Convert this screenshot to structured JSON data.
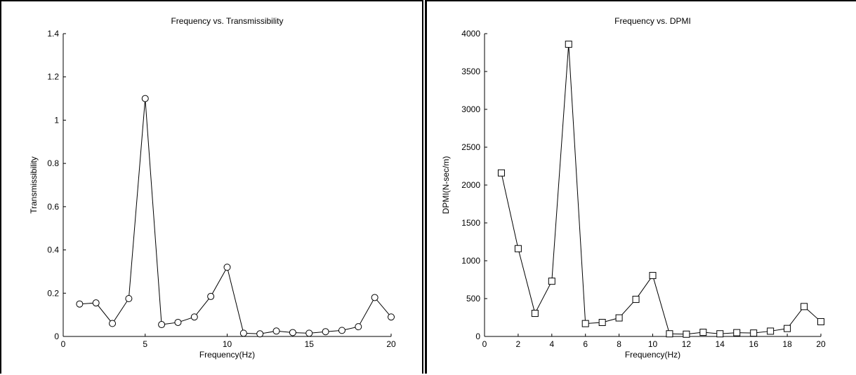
{
  "chart_data": [
    {
      "type": "line",
      "title": "Frequency vs. Transmissibility",
      "xlabel": "Frequency(Hz)",
      "ylabel": "Transmissibility",
      "xlim": [
        0,
        20
      ],
      "ylim": [
        0,
        1.4
      ],
      "xticks": [
        "0",
        "5",
        "10",
        "15",
        "20"
      ],
      "yticks": [
        "0",
        "0.2",
        "0.4",
        "0.6",
        "0.8",
        "1",
        "1.2",
        "1.4"
      ],
      "marker": "circle",
      "grid": false,
      "color": "#000000",
      "x": [
        1,
        2,
        3,
        4,
        5,
        6,
        7,
        8,
        9,
        10,
        11,
        12,
        13,
        14,
        15,
        16,
        17,
        18,
        19,
        20
      ],
      "y": [
        0.15,
        0.155,
        0.06,
        0.175,
        1.1,
        0.055,
        0.065,
        0.09,
        0.185,
        0.32,
        0.015,
        0.012,
        0.025,
        0.018,
        0.015,
        0.022,
        0.028,
        0.045,
        0.18,
        0.09
      ]
    },
    {
      "type": "line",
      "title": "Frequency vs. DPMI",
      "xlabel": "Frequency(Hz)",
      "ylabel": "DPMI(N-sec/m)",
      "xlim": [
        0,
        20
      ],
      "ylim": [
        0,
        4000
      ],
      "xticks": [
        "0",
        "2",
        "4",
        "6",
        "8",
        "10",
        "12",
        "14",
        "16",
        "18",
        "20"
      ],
      "yticks": [
        "0",
        "500",
        "1000",
        "1500",
        "2000",
        "2500",
        "3000",
        "3500",
        "4000"
      ],
      "marker": "square",
      "grid": false,
      "color": "#000000",
      "x": [
        1,
        2,
        3,
        4,
        5,
        6,
        7,
        8,
        9,
        10,
        11,
        12,
        13,
        14,
        15,
        16,
        17,
        18,
        19,
        20
      ],
      "y": [
        2160,
        1160,
        305,
        730,
        3860,
        170,
        185,
        245,
        490,
        805,
        35,
        30,
        55,
        35,
        50,
        45,
        70,
        105,
        395,
        195
      ]
    }
  ]
}
